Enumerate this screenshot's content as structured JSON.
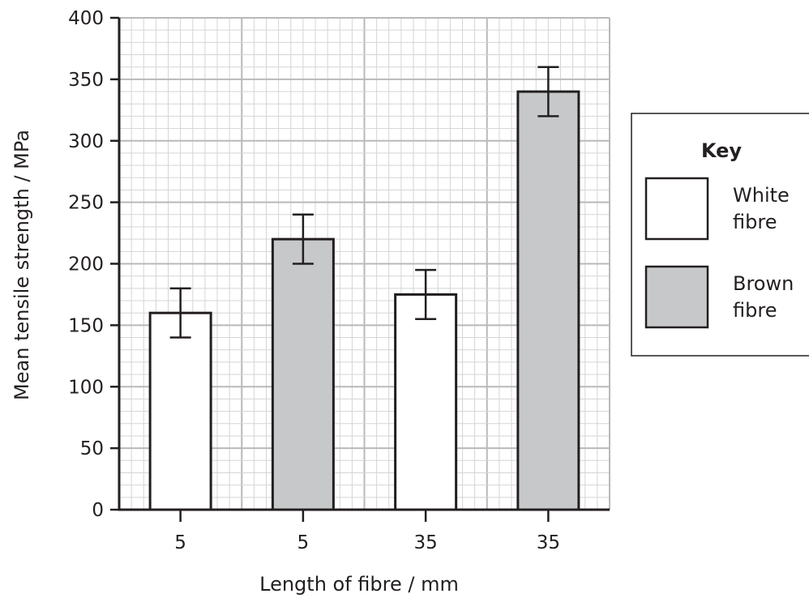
{
  "chart_data": {
    "type": "bar",
    "categories": [
      "5",
      "5",
      "35",
      "35"
    ],
    "values": [
      160,
      220,
      175,
      340
    ],
    "error_low": [
      140,
      200,
      155,
      320
    ],
    "error_high": [
      180,
      240,
      195,
      360
    ],
    "bar_series": [
      "White fibre",
      "Brown fibre",
      "White fibre",
      "Brown fibre"
    ],
    "xlabel": "Length of fibre / mm",
    "ylabel": "Mean tensile strength / MPa",
    "ylim": [
      0,
      400
    ],
    "yticks": [
      0,
      50,
      100,
      150,
      200,
      250,
      300,
      350,
      400
    ],
    "grid": true,
    "legend": {
      "title": "Key",
      "position": "right",
      "entries": [
        {
          "name": "White fibre",
          "lines": [
            "White",
            "fibre"
          ],
          "color": "#ffffff"
        },
        {
          "name": "Brown fibre",
          "lines": [
            "Brown",
            "fibre"
          ],
          "color": "#c7c8ca"
        }
      ]
    },
    "colors": {
      "grid_major": "#b8b9bb",
      "grid_minor": "#d4d5d6",
      "axis": "#231f20",
      "white_bar": "#ffffff",
      "brown_bar": "#c7c8ca"
    }
  }
}
